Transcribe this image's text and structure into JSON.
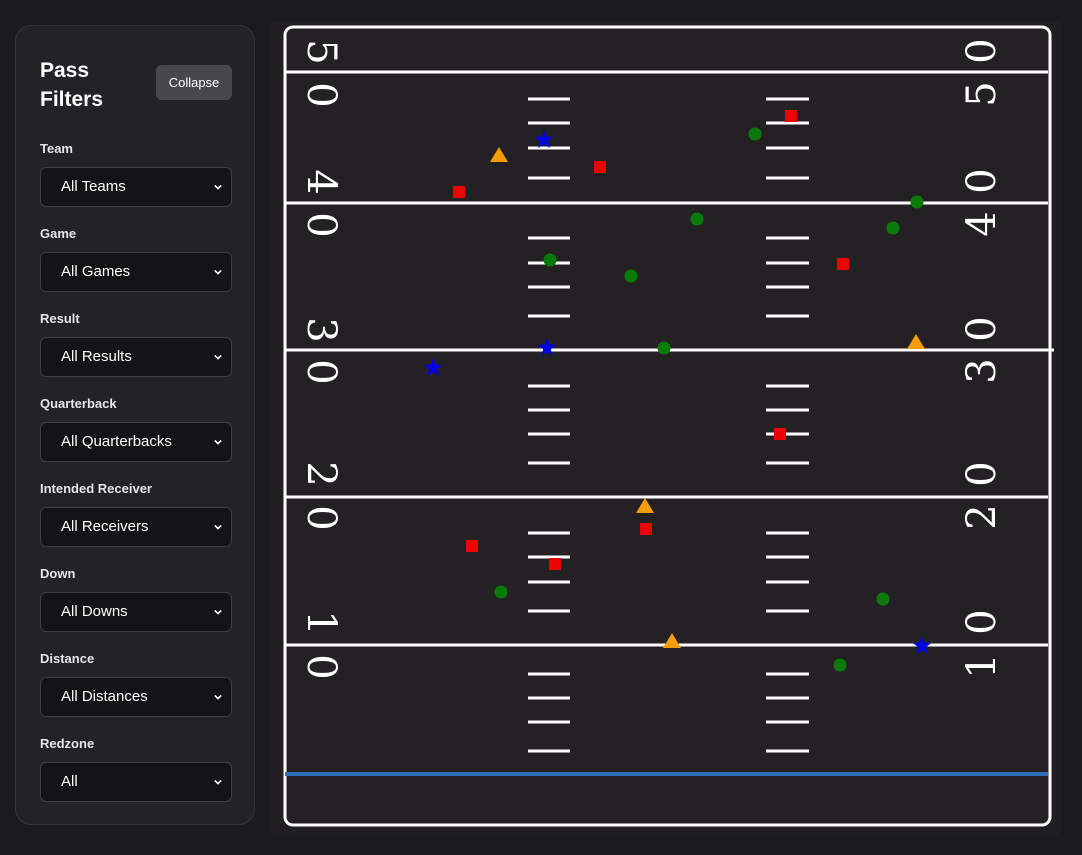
{
  "sidebar": {
    "title": "Pass Filters",
    "collapse_label": "Collapse",
    "filters": [
      {
        "label": "Team",
        "value": "All Teams"
      },
      {
        "label": "Game",
        "value": "All Games"
      },
      {
        "label": "Result",
        "value": "All Results"
      },
      {
        "label": "Quarterback",
        "value": "All Quarterbacks"
      },
      {
        "label": "Intended Receiver",
        "value": "All Receivers"
      },
      {
        "label": "Down",
        "value": "All Downs"
      },
      {
        "label": "Distance",
        "value": "All Distances"
      },
      {
        "label": "Redzone",
        "value": "All"
      }
    ]
  },
  "field": {
    "yard_numbers_left": [
      "5",
      "0",
      "4",
      "0",
      "3",
      "0",
      "2",
      "0",
      "1",
      "0"
    ],
    "yard_numbers_right": [
      "5",
      "0",
      "4",
      "0",
      "3",
      "0",
      "2",
      "0",
      "1",
      "0"
    ],
    "colors": {
      "background": "#201e21",
      "lines": "#ffffff",
      "line_of_scrimmage": "#2e6fb5",
      "complete": "#0a7a0a",
      "incomplete": "#ee0000",
      "touchdown": "#0000ee",
      "interception": "#f59c0a"
    },
    "marker_shapes": {
      "circle": "complete",
      "square": "incomplete",
      "star": "touchdown",
      "triangle": "interception"
    }
  }
}
